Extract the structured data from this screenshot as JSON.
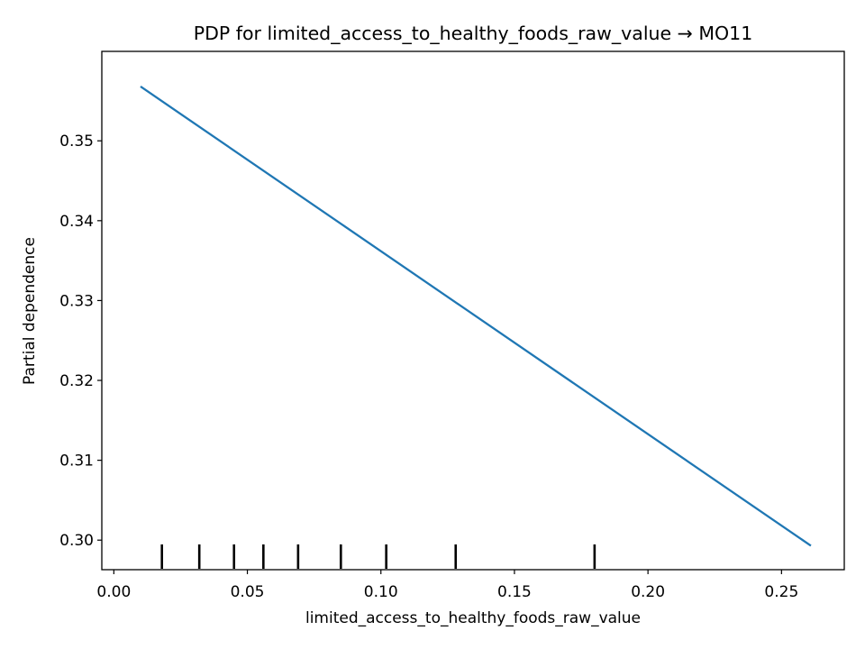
{
  "chart_data": {
    "type": "line",
    "title": "PDP for limited_access_to_healthy_foods_raw_value → MO11",
    "xlabel": "limited_access_to_healthy_foods_raw_value",
    "ylabel": "Partial dependence",
    "xlim": [
      -0.0045,
      0.2735
    ],
    "ylim": [
      0.2963,
      0.3612
    ],
    "xticks": [
      0.0,
      0.05,
      0.1,
      0.15,
      0.2,
      0.25
    ],
    "xtick_labels": [
      "0.00",
      "0.05",
      "0.10",
      "0.15",
      "0.20",
      "0.25"
    ],
    "yticks": [
      0.3,
      0.31,
      0.32,
      0.33,
      0.34,
      0.35
    ],
    "ytick_labels": [
      "0.30",
      "0.31",
      "0.32",
      "0.33",
      "0.34",
      "0.35"
    ],
    "series": [
      {
        "name": "partial dependence",
        "color": "#1f77b4",
        "x": [
          0.01,
          0.261
        ],
        "y": [
          0.3568,
          0.2993
        ]
      }
    ],
    "deciles": [
      0.018,
      0.032,
      0.045,
      0.056,
      0.069,
      0.085,
      0.102,
      0.128,
      0.18
    ],
    "grid": false
  }
}
